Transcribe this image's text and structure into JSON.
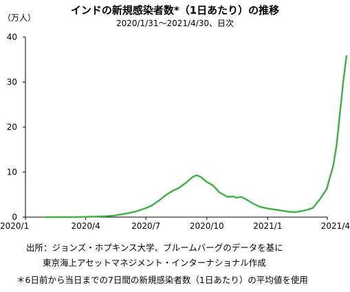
{
  "chart_data": {
    "type": "line",
    "title": "インドの新規感染者数*（1日あたり）の推移",
    "subtitle": "2020/1/31〜2021/4/30、日次",
    "ylabel": "（万人）",
    "xlabel": "",
    "ylim": [
      0,
      40
    ],
    "y_ticks": [
      "0",
      "10",
      "20",
      "30",
      "40"
    ],
    "x_ticks": [
      "2020/1",
      "2020/4",
      "2020/7",
      "2020/10",
      "2021/1",
      "2021/4"
    ],
    "grid": false,
    "legend": "none",
    "series": [
      {
        "color": "#3cb043",
        "points": [
          [
            "2020/1/31",
            0
          ],
          [
            "2020/3/15",
            0.01
          ],
          [
            "2020/4/1",
            0.05
          ],
          [
            "2020/4/15",
            0.1
          ],
          [
            "2020/5/1",
            0.2
          ],
          [
            "2020/5/15",
            0.35
          ],
          [
            "2020/6/1",
            0.8
          ],
          [
            "2020/6/15",
            1.2
          ],
          [
            "2020/7/1",
            2.0
          ],
          [
            "2020/7/10",
            2.6
          ],
          [
            "2020/7/20",
            3.6
          ],
          [
            "2020/8/1",
            5.0
          ],
          [
            "2020/8/10",
            5.8
          ],
          [
            "2020/8/20",
            6.5
          ],
          [
            "2020/9/1",
            7.8
          ],
          [
            "2020/9/10",
            9.0
          ],
          [
            "2020/9/16",
            9.3
          ],
          [
            "2020/9/22",
            8.9
          ],
          [
            "2020/10/1",
            7.8
          ],
          [
            "2020/10/10",
            7.1
          ],
          [
            "2020/10/20",
            5.5
          ],
          [
            "2020/11/1",
            4.5
          ],
          [
            "2020/11/10",
            4.6
          ],
          [
            "2020/11/15",
            4.3
          ],
          [
            "2020/11/22",
            4.5
          ],
          [
            "2020/12/1",
            3.8
          ],
          [
            "2020/12/10",
            3.0
          ],
          [
            "2020/12/20",
            2.3
          ],
          [
            "2021/1/1",
            1.9
          ],
          [
            "2021/1/15",
            1.6
          ],
          [
            "2021/2/1",
            1.2
          ],
          [
            "2021/2/10",
            1.1
          ],
          [
            "2021/2/20",
            1.3
          ],
          [
            "2021/3/1",
            1.6
          ],
          [
            "2021/3/10",
            2.0
          ],
          [
            "2021/3/20",
            3.8
          ],
          [
            "2021/3/31",
            6.2
          ],
          [
            "2021/4/10",
            11.5
          ],
          [
            "2021/4/15",
            16.0
          ],
          [
            "2021/4/20",
            23.0
          ],
          [
            "2021/4/25",
            30.0
          ],
          [
            "2021/4/30",
            35.8
          ]
        ]
      }
    ]
  },
  "footer": {
    "line1": "出所：ジョンズ・ホプキンス大学、ブルームバーグのデータを基に",
    "line2": "東京海上アセットマネジメント・インターナショナル作成",
    "line3": "＊6日前から当日までの7日間の新規感染者数（1日あたり）の平均値を使用"
  }
}
